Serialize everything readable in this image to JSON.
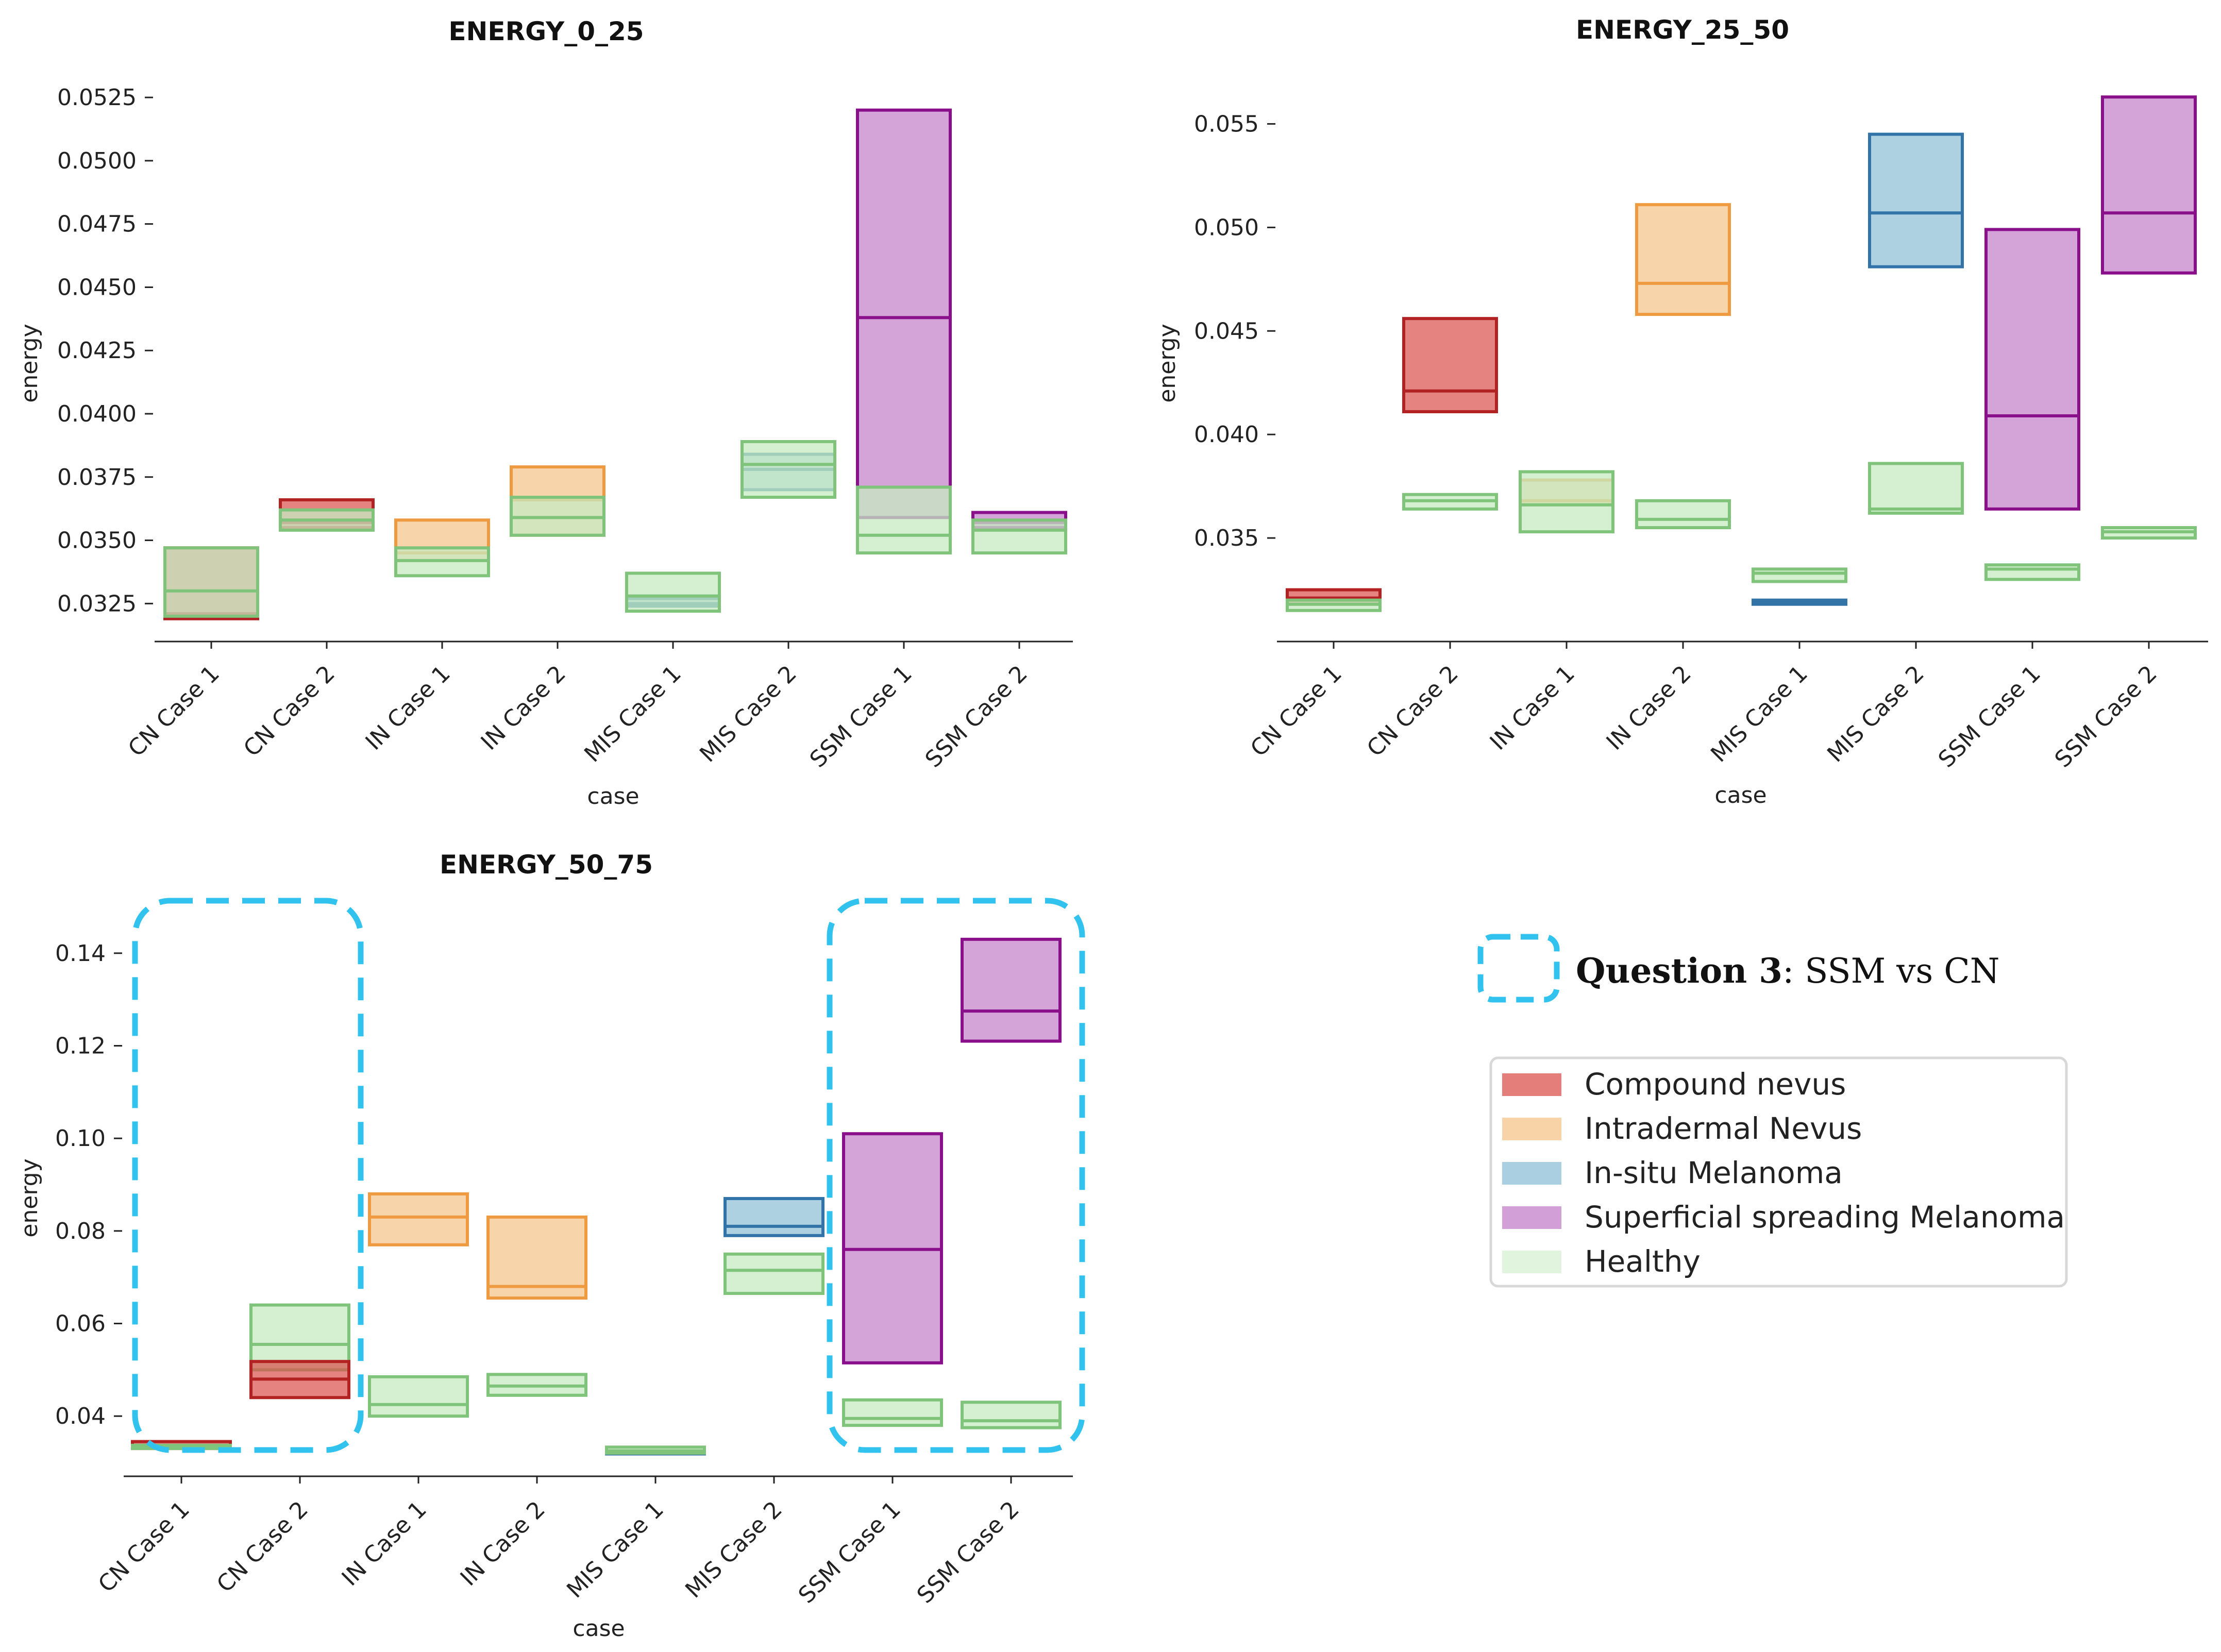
{
  "categories": [
    "Compound nevus",
    "Intradermal Nevus",
    "In-situ Melanoma",
    "Superficial spreading Melanoma",
    "Healthy"
  ],
  "colors": {
    "Compound nevus": {
      "fill": "#d9534f",
      "stroke": "#b22222"
    },
    "Intradermal Nevus": {
      "fill": "#f5c48a",
      "stroke": "#ee9a40"
    },
    "In-situ Melanoma": {
      "fill": "#8ebfd6",
      "stroke": "#3273a8"
    },
    "Superficial spreading Melanoma": {
      "fill": "#c37fc9",
      "stroke": "#8a0f8a"
    },
    "Healthy": {
      "fill": "#c7ebc2",
      "stroke": "#7fc47a"
    }
  },
  "annotation": {
    "bold": "Question 3",
    "rest": ": SSM vs CN"
  },
  "chart_data": [
    {
      "type": "box",
      "title": "ENERGY_0_25",
      "xlabel": "case",
      "ylabel": "energy",
      "ylim": [
        0.031,
        0.0535
      ],
      "yticks": [
        "0.0325",
        "0.0350",
        "0.0375",
        "0.0400",
        "0.0425",
        "0.0450",
        "0.0475",
        "0.0500",
        "0.0525"
      ],
      "cases": [
        "CN Case 1",
        "CN Case 2",
        "IN Case 1",
        "IN Case 2",
        "MIS Case 1",
        "MIS Case 2",
        "SSM Case 1",
        "SSM Case 2"
      ],
      "boxes": [
        {
          "case": 0,
          "category": "Compound nevus",
          "q1": 0.0319,
          "median": 0.0321,
          "q3": 0.0347
        },
        {
          "case": 0,
          "category": "Healthy",
          "q1": 0.032,
          "median": 0.033,
          "q3": 0.0347
        },
        {
          "case": 1,
          "category": "Compound nevus",
          "q1": 0.0355,
          "median": 0.0357,
          "q3": 0.0366
        },
        {
          "case": 1,
          "category": "Healthy",
          "q1": 0.0354,
          "median": 0.0358,
          "q3": 0.0362
        },
        {
          "case": 2,
          "category": "Intradermal Nevus",
          "q1": 0.0342,
          "median": 0.0345,
          "q3": 0.0358
        },
        {
          "case": 2,
          "category": "Healthy",
          "q1": 0.0336,
          "median": 0.0342,
          "q3": 0.0347
        },
        {
          "case": 3,
          "category": "Intradermal Nevus",
          "q1": 0.0352,
          "median": 0.0366,
          "q3": 0.0379
        },
        {
          "case": 3,
          "category": "Healthy",
          "q1": 0.0352,
          "median": 0.0359,
          "q3": 0.0367
        },
        {
          "case": 4,
          "category": "In-situ Melanoma",
          "q1": 0.0324,
          "median": 0.0325,
          "q3": 0.0327
        },
        {
          "case": 4,
          "category": "Healthy",
          "q1": 0.0322,
          "median": 0.0328,
          "q3": 0.0337
        },
        {
          "case": 5,
          "category": "In-situ Melanoma",
          "q1": 0.037,
          "median": 0.0378,
          "q3": 0.0384
        },
        {
          "case": 5,
          "category": "Healthy",
          "q1": 0.0367,
          "median": 0.038,
          "q3": 0.0389
        },
        {
          "case": 6,
          "category": "Superficial spreading Melanoma",
          "q1": 0.0359,
          "median": 0.0438,
          "q3": 0.052
        },
        {
          "case": 6,
          "category": "Healthy",
          "q1": 0.0345,
          "median": 0.0352,
          "q3": 0.0371
        },
        {
          "case": 7,
          "category": "Superficial spreading Melanoma",
          "q1": 0.0355,
          "median": 0.0357,
          "q3": 0.0361
        },
        {
          "case": 7,
          "category": "Healthy",
          "q1": 0.0345,
          "median": 0.0354,
          "q3": 0.0358
        }
      ]
    },
    {
      "type": "box",
      "title": "ENERGY_25_50",
      "xlabel": "case",
      "ylabel": "energy",
      "ylim": [
        0.03,
        0.0575
      ],
      "yticks": [
        "0.035",
        "0.040",
        "0.045",
        "0.050",
        "0.055"
      ],
      "cases": [
        "CN Case 1",
        "CN Case 2",
        "IN Case 1",
        "IN Case 2",
        "MIS Case 1",
        "MIS Case 2",
        "SSM Case 1",
        "SSM Case 2"
      ],
      "boxes": [
        {
          "case": 0,
          "category": "Compound nevus",
          "q1": 0.0318,
          "median": 0.0321,
          "q3": 0.0325
        },
        {
          "case": 0,
          "category": "Healthy",
          "q1": 0.0315,
          "median": 0.0318,
          "q3": 0.032
        },
        {
          "case": 1,
          "category": "Compound nevus",
          "q1": 0.0411,
          "median": 0.0421,
          "q3": 0.0456
        },
        {
          "case": 1,
          "category": "Healthy",
          "q1": 0.0364,
          "median": 0.0368,
          "q3": 0.0371
        },
        {
          "case": 2,
          "category": "Intradermal Nevus",
          "q1": 0.0366,
          "median": 0.0368,
          "q3": 0.0378
        },
        {
          "case": 2,
          "category": "Healthy",
          "q1": 0.0353,
          "median": 0.0366,
          "q3": 0.0382
        },
        {
          "case": 3,
          "category": "Intradermal Nevus",
          "q1": 0.0458,
          "median": 0.0473,
          "q3": 0.0511
        },
        {
          "case": 3,
          "category": "Healthy",
          "q1": 0.0355,
          "median": 0.0359,
          "q3": 0.0368
        },
        {
          "case": 4,
          "category": "In-situ Melanoma",
          "q1": 0.0318,
          "median": 0.0319,
          "q3": 0.032
        },
        {
          "case": 4,
          "category": "Healthy",
          "q1": 0.0329,
          "median": 0.0333,
          "q3": 0.0335
        },
        {
          "case": 5,
          "category": "In-situ Melanoma",
          "q1": 0.0481,
          "median": 0.0507,
          "q3": 0.0545
        },
        {
          "case": 5,
          "category": "Healthy",
          "q1": 0.0362,
          "median": 0.0364,
          "q3": 0.0386
        },
        {
          "case": 6,
          "category": "Superficial spreading Melanoma",
          "q1": 0.0364,
          "median": 0.0409,
          "q3": 0.0499
        },
        {
          "case": 6,
          "category": "Healthy",
          "q1": 0.033,
          "median": 0.0335,
          "q3": 0.0337
        },
        {
          "case": 7,
          "category": "Superficial spreading Melanoma",
          "q1": 0.0478,
          "median": 0.0507,
          "q3": 0.0563
        },
        {
          "case": 7,
          "category": "Healthy",
          "q1": 0.035,
          "median": 0.0353,
          "q3": 0.0355
        }
      ]
    },
    {
      "type": "box",
      "title": "ENERGY_50_75",
      "xlabel": "case",
      "ylabel": "energy",
      "ylim": [
        0.027,
        0.15
      ],
      "yticks": [
        "0.04",
        "0.06",
        "0.08",
        "0.10",
        "0.12",
        "0.14"
      ],
      "cases": [
        "CN Case 1",
        "CN Case 2",
        "IN Case 1",
        "IN Case 2",
        "MIS Case 1",
        "MIS Case 2",
        "SSM Case 1",
        "SSM Case 2"
      ],
      "boxes": [
        {
          "case": 0,
          "category": "Compound nevus",
          "q1": 0.033,
          "median": 0.0335,
          "q3": 0.0345
        },
        {
          "case": 0,
          "category": "Healthy",
          "q1": 0.033,
          "median": 0.0333,
          "q3": 0.0337
        },
        {
          "case": 1,
          "category": "Healthy",
          "q1": 0.05,
          "median": 0.0555,
          "q3": 0.064
        },
        {
          "case": 1,
          "category": "Compound nevus",
          "q1": 0.044,
          "median": 0.048,
          "q3": 0.0518
        },
        {
          "case": 2,
          "category": "Intradermal Nevus",
          "q1": 0.077,
          "median": 0.083,
          "q3": 0.088
        },
        {
          "case": 2,
          "category": "Healthy",
          "q1": 0.04,
          "median": 0.0425,
          "q3": 0.0485
        },
        {
          "case": 3,
          "category": "Intradermal Nevus",
          "q1": 0.0655,
          "median": 0.068,
          "q3": 0.083
        },
        {
          "case": 3,
          "category": "Healthy",
          "q1": 0.0445,
          "median": 0.0465,
          "q3": 0.049
        },
        {
          "case": 4,
          "category": "In-situ Melanoma",
          "q1": 0.032,
          "median": 0.0322,
          "q3": 0.0325
        },
        {
          "case": 4,
          "category": "Healthy",
          "q1": 0.032,
          "median": 0.0325,
          "q3": 0.0333
        },
        {
          "case": 5,
          "category": "In-situ Melanoma",
          "q1": 0.079,
          "median": 0.081,
          "q3": 0.087
        },
        {
          "case": 5,
          "category": "Healthy",
          "q1": 0.0665,
          "median": 0.0715,
          "q3": 0.075
        },
        {
          "case": 6,
          "category": "Superficial spreading Melanoma",
          "q1": 0.0515,
          "median": 0.076,
          "q3": 0.101
        },
        {
          "case": 6,
          "category": "Healthy",
          "q1": 0.038,
          "median": 0.0395,
          "q3": 0.0435
        },
        {
          "case": 7,
          "category": "Superficial spreading Melanoma",
          "q1": 0.121,
          "median": 0.1275,
          "q3": 0.143
        },
        {
          "case": 7,
          "category": "Healthy",
          "q1": 0.0375,
          "median": 0.039,
          "q3": 0.043
        }
      ]
    }
  ]
}
